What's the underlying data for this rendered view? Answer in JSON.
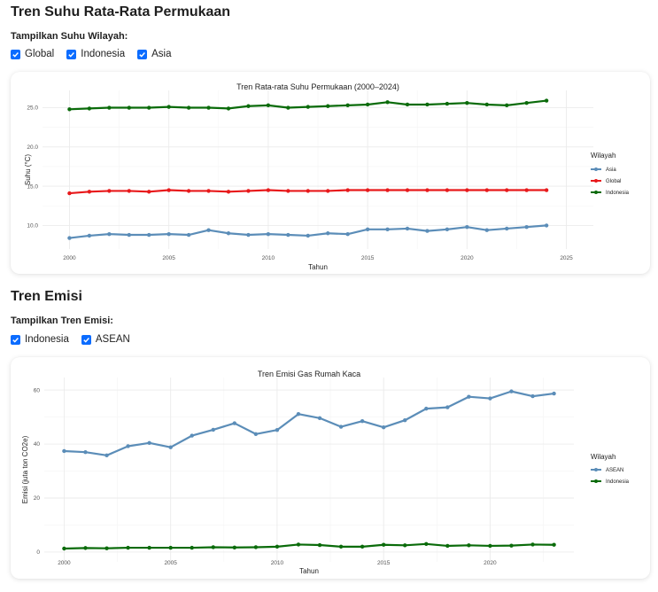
{
  "temp_section": {
    "title": "Tren Suhu Rata-Rata Permukaan",
    "toggle_label": "Tampilkan Suhu Wilayah:",
    "checkboxes": [
      {
        "label": "Global",
        "checked": true
      },
      {
        "label": "Indonesia",
        "checked": true
      },
      {
        "label": "Asia",
        "checked": true
      }
    ]
  },
  "emission_section": {
    "title": "Tren Emisi",
    "toggle_label": "Tampilkan Tren Emisi:",
    "checkboxes": [
      {
        "label": "Indonesia",
        "checked": true
      },
      {
        "label": "ASEAN",
        "checked": true
      }
    ]
  },
  "colors": {
    "checkbox": "#0b6cff",
    "asia": "#5b8db8",
    "global": "#e8191b",
    "indonesia": "#0a6b0a",
    "asean": "#5b8db8",
    "grid": "#ebebeb"
  },
  "chart_data": [
    {
      "type": "line",
      "title": "Tren Rata-rata Suhu Permukaan (2000–2024)",
      "xlabel": "Tahun",
      "ylabel": "Suhu (°C)",
      "xlim": [
        1999,
        2026
      ],
      "ylim": [
        7.9,
        26.3
      ],
      "xticks": [
        "2000",
        "2005",
        "2010",
        "2015",
        "2020",
        "2025"
      ],
      "yticks": [
        "10.0",
        "15.0",
        "20.0",
        "25.0"
      ],
      "legend_title": "Wilayah",
      "legend_position": "right",
      "x": [
        2000,
        2001,
        2002,
        2003,
        2004,
        2005,
        2006,
        2007,
        2008,
        2009,
        2010,
        2011,
        2012,
        2013,
        2014,
        2015,
        2016,
        2017,
        2018,
        2019,
        2020,
        2021,
        2022,
        2023,
        2024
      ],
      "series": [
        {
          "name": "Asia",
          "color_key": "asia",
          "values": [
            8.4,
            8.7,
            8.9,
            8.8,
            8.8,
            8.9,
            8.8,
            9.4,
            9.0,
            8.8,
            8.9,
            8.8,
            8.7,
            9.0,
            8.9,
            9.5,
            9.5,
            9.6,
            9.3,
            9.5,
            9.8,
            9.4,
            9.6,
            9.8,
            10.0
          ]
        },
        {
          "name": "Global",
          "color_key": "global",
          "values": [
            14.1,
            14.3,
            14.4,
            14.4,
            14.3,
            14.5,
            14.4,
            14.4,
            14.3,
            14.4,
            14.5,
            14.4,
            14.4,
            14.4,
            14.5,
            14.5,
            14.5,
            14.5,
            14.5,
            14.5,
            14.5,
            14.5,
            14.5,
            14.5,
            14.5
          ]
        },
        {
          "name": "Indonesia",
          "color_key": "indonesia",
          "values": [
            24.8,
            24.9,
            25.0,
            25.0,
            25.0,
            25.1,
            25.0,
            25.0,
            24.9,
            25.2,
            25.3,
            25.0,
            25.1,
            25.2,
            25.3,
            25.4,
            25.7,
            25.4,
            25.4,
            25.5,
            25.6,
            25.4,
            25.3,
            25.6,
            25.9
          ]
        }
      ]
    },
    {
      "type": "line",
      "title": "Tren Emisi Gas Rumah Kaca",
      "xlabel": "Tahun",
      "ylabel": "Emisi (juta ton CO2e)",
      "xlim": [
        1999.4,
        2023.6
      ],
      "ylim": [
        -1,
        62
      ],
      "xticks": [
        "2000",
        "2005",
        "2010",
        "2015",
        "2020"
      ],
      "yticks": [
        "0",
        "20",
        "40",
        "60"
      ],
      "legend_title": "Wilayah",
      "legend_position": "right",
      "x": [
        2000,
        2001,
        2002,
        2003,
        2004,
        2005,
        2006,
        2007,
        2008,
        2009,
        2010,
        2011,
        2012,
        2013,
        2014,
        2015,
        2016,
        2017,
        2018,
        2019,
        2020,
        2021,
        2022,
        2023
      ],
      "series": [
        {
          "name": "ASEAN",
          "color_key": "asean",
          "values": [
            37.4,
            37.0,
            35.8,
            39.2,
            40.4,
            38.8,
            43.1,
            45.3,
            47.7,
            43.7,
            45.2,
            51.1,
            49.6,
            46.4,
            48.5,
            46.2,
            48.8,
            53.1,
            53.6,
            57.5,
            56.9,
            59.5,
            57.7,
            58.7
          ]
        },
        {
          "name": "Indonesia",
          "color_key": "indonesia",
          "values": [
            1.3,
            1.5,
            1.4,
            1.6,
            1.6,
            1.6,
            1.6,
            1.8,
            1.7,
            1.8,
            2.0,
            2.8,
            2.6,
            2.0,
            2.0,
            2.7,
            2.5,
            3.0,
            2.3,
            2.5,
            2.3,
            2.4,
            2.8,
            2.7
          ]
        }
      ]
    }
  ]
}
